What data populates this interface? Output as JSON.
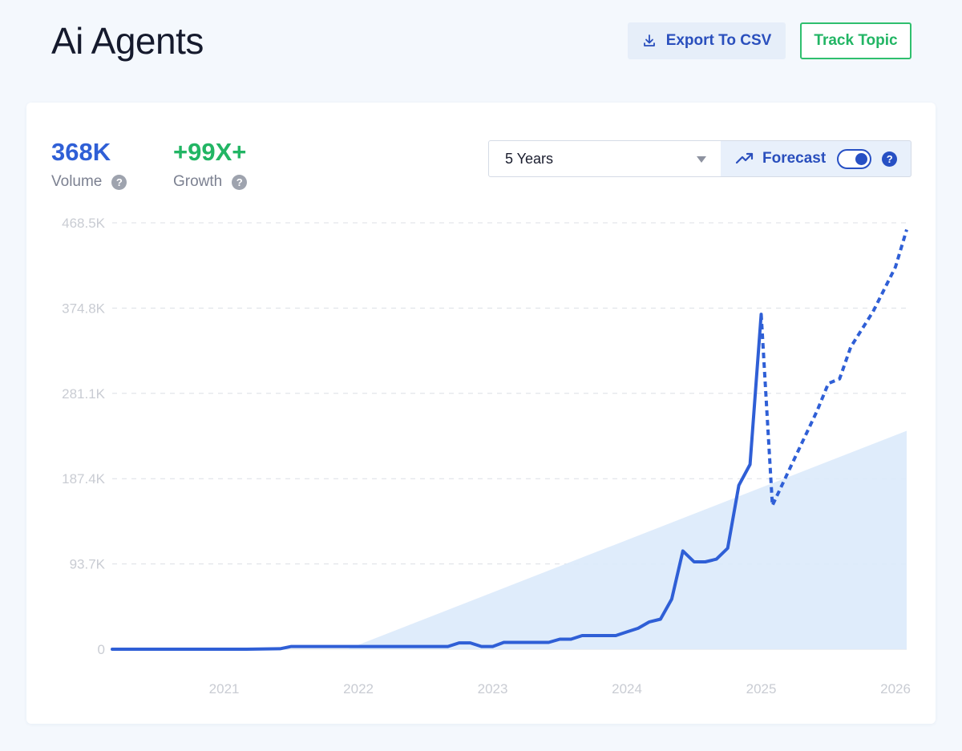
{
  "header": {
    "title": "Ai Agents",
    "export_label": "Export To CSV",
    "track_label": "Track Topic"
  },
  "metrics": {
    "volume": {
      "value": "368K",
      "label": "Volume"
    },
    "growth": {
      "value": "+99X+",
      "label": "Growth"
    }
  },
  "controls": {
    "range": "5 Years",
    "forecast_label": "Forecast",
    "forecast_on": true
  },
  "colors": {
    "accent": "#2f5fd6",
    "growth": "#22b564",
    "trend_fill": "#dceafb",
    "gridline": "#dcdfe5"
  },
  "icons": {
    "export": "download-icon",
    "forecast": "trend-up-icon",
    "help": "question-icon",
    "dropdown": "caret-down-icon"
  },
  "chart_data": {
    "type": "line",
    "title": "",
    "xlabel": "",
    "ylabel": "",
    "x_ticks": [
      "2021",
      "2022",
      "2023",
      "2024",
      "2025",
      "2026"
    ],
    "y_ticks": [
      "0",
      "93.7K",
      "187.4K",
      "281.1K",
      "374.8K",
      "468.5K"
    ],
    "xlim": [
      "2020-09",
      "2026-08"
    ],
    "ylim": [
      0,
      468500
    ],
    "grid": true,
    "legend": "none",
    "series": [
      {
        "kind": "actual",
        "style": "solid",
        "points": [
          [
            "2020-09",
            0
          ],
          [
            "2021-03",
            0
          ],
          [
            "2021-09",
            0
          ],
          [
            "2021-12",
            500
          ],
          [
            "2022-01",
            3000
          ],
          [
            "2022-06",
            3000
          ],
          [
            "2022-12",
            3000
          ],
          [
            "2023-03",
            3000
          ],
          [
            "2023-04",
            7000
          ],
          [
            "2023-05",
            7000
          ],
          [
            "2023-06",
            3000
          ],
          [
            "2023-07",
            3000
          ],
          [
            "2023-08",
            7500
          ],
          [
            "2023-12",
            7500
          ],
          [
            "2024-01",
            11000
          ],
          [
            "2024-02",
            11000
          ],
          [
            "2024-03",
            15000
          ],
          [
            "2024-06",
            15000
          ],
          [
            "2024-07",
            19000
          ],
          [
            "2024-08",
            23000
          ],
          [
            "2024-09",
            30000
          ],
          [
            "2024-10",
            33000
          ],
          [
            "2024-11",
            55000
          ],
          [
            "2024-12",
            108000
          ],
          [
            "2025-01",
            96000
          ],
          [
            "2025-02",
            96000
          ],
          [
            "2025-03",
            99000
          ],
          [
            "2025-04",
            111000
          ],
          [
            "2025-05",
            180000
          ],
          [
            "2025-06",
            203000
          ],
          [
            "2025-07",
            368000
          ]
        ]
      },
      {
        "kind": "forecast",
        "style": "dashed",
        "points": [
          [
            "2025-07",
            368000
          ],
          [
            "2025-08",
            158000
          ],
          [
            "2025-10",
            210000
          ],
          [
            "2025-12",
            262000
          ],
          [
            "2026-01",
            292000
          ],
          [
            "2026-02",
            297000
          ],
          [
            "2026-03",
            332000
          ],
          [
            "2026-05",
            371000
          ],
          [
            "2026-07",
            420000
          ],
          [
            "2026-08",
            461000
          ]
        ]
      },
      {
        "kind": "trend",
        "style": "area",
        "points": [
          [
            "2022-06",
            0
          ],
          [
            "2026-08",
            240000
          ]
        ]
      }
    ]
  }
}
